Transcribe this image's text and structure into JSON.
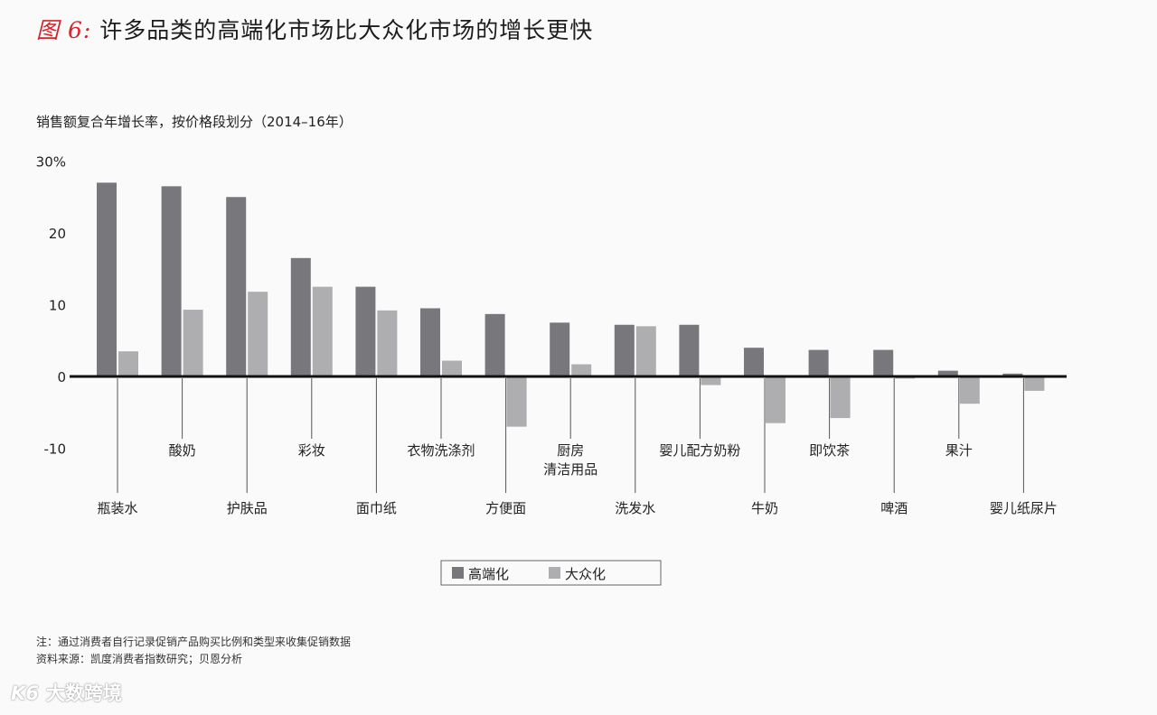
{
  "header": {
    "prefix": "图 6:",
    "title": "许多品类的高端化市场比大众化市场的增长更快"
  },
  "subtitle": "销售额复合年增长率，按价格段划分（2014–16年）",
  "chart_data": {
    "type": "bar",
    "categories": [
      "瓶装水",
      "酸奶",
      "护肤品",
      "彩妆",
      "面巾纸",
      "衣物洗涤剂",
      "方便面",
      "厨房\n清洁用品",
      "洗发水",
      "婴儿配方奶粉",
      "牛奶",
      "即饮茶",
      "啤酒",
      "果汁",
      "婴儿纸尿片"
    ],
    "series": [
      {
        "name": "高端化",
        "color": "#77777c",
        "values": [
          27,
          26.5,
          25,
          16.5,
          12.5,
          9.5,
          8.7,
          7.5,
          7.2,
          7.2,
          4,
          3.7,
          3.7,
          0.8,
          0.4
        ]
      },
      {
        "name": "大众化",
        "color": "#aeaeb1",
        "values": [
          3.5,
          9.3,
          11.8,
          12.5,
          9.2,
          2.2,
          -7,
          1.7,
          7,
          -1.2,
          -6.5,
          -5.8,
          -0.3,
          -3.8,
          -2
        ]
      }
    ],
    "y_ticks": [
      30,
      20,
      10,
      0,
      -10
    ],
    "y_tick_labels": [
      "30%",
      "20",
      "10",
      "0",
      "-10"
    ],
    "ylim": [
      -10,
      30
    ],
    "legend": "bottom-center",
    "grid": false
  },
  "notes": [
    "注：通过消费者自行记录促销产品购买比例和类型来收集促销数据",
    "资料来源：凯度消费者指数研究；贝恩分析"
  ],
  "watermark": {
    "logo": "K6",
    "text": "大数跨境"
  }
}
